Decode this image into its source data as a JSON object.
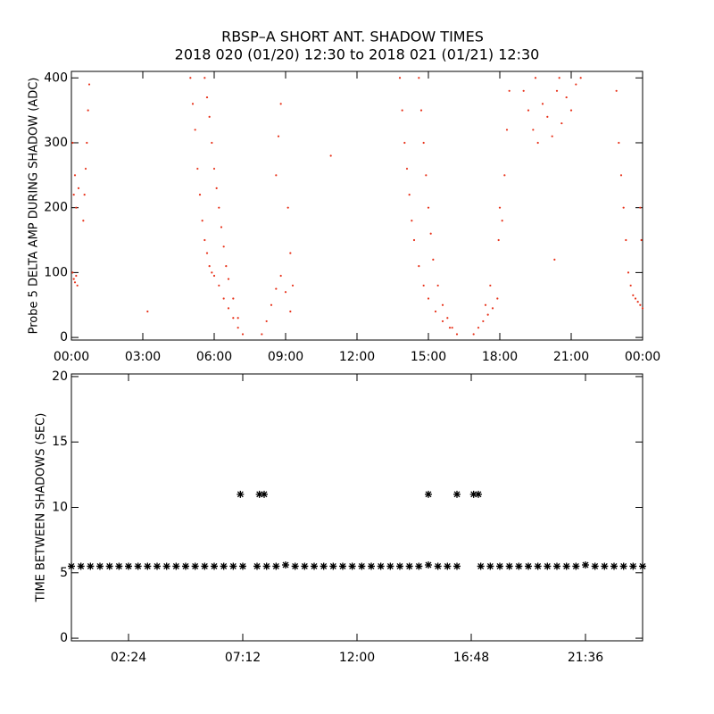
{
  "chart_data": [
    {
      "type": "scatter",
      "title": "RBSP–A SHORT ANT. SHADOW TIMES",
      "subtitle": "2018 020 (01/20) 12:30 to 2018 021 (01/21) 12:30",
      "ylabel": "Probe 5 DELTA AMP DURING SHADOW (ADC)",
      "color": "#e8321a",
      "marker": "dot",
      "xlim": [
        0,
        24
      ],
      "ylim": [
        -4,
        410
      ],
      "xticks": [
        {
          "value": 0,
          "label": "00:00"
        },
        {
          "value": 3,
          "label": "03:00"
        },
        {
          "value": 6,
          "label": "06:00"
        },
        {
          "value": 9,
          "label": "09:00"
        },
        {
          "value": 12,
          "label": "12:00"
        },
        {
          "value": 15,
          "label": "15:00"
        },
        {
          "value": 18,
          "label": "18:00"
        },
        {
          "value": 21,
          "label": "21:00"
        },
        {
          "value": 24,
          "label": "00:00"
        }
      ],
      "yticks": [
        0,
        100,
        200,
        300,
        400
      ],
      "x": [
        0.05,
        0.1,
        0.15,
        0.2,
        0.25,
        0.1,
        0.15,
        0.2,
        0.05,
        0.3,
        0.5,
        0.55,
        0.6,
        0.65,
        0.7,
        0.75,
        5.0,
        5.1,
        5.2,
        5.3,
        5.4,
        5.5,
        5.6,
        5.7,
        5.8,
        5.9,
        6.0,
        6.2,
        6.4,
        6.6,
        6.8,
        7.0,
        7.2,
        5.6,
        5.7,
        5.8,
        5.9,
        6.0,
        6.1,
        6.2,
        6.3,
        6.4,
        6.5,
        6.6,
        6.8,
        7.0,
        8.0,
        8.2,
        8.4,
        8.6,
        8.8,
        9.0,
        9.2,
        8.6,
        8.7,
        8.8,
        9.1,
        9.2,
        9.3,
        10.9,
        3.2,
        13.8,
        13.9,
        14.0,
        14.1,
        14.2,
        14.3,
        14.4,
        14.6,
        14.8,
        15.0,
        15.3,
        15.6,
        15.9,
        16.2,
        14.6,
        14.7,
        14.8,
        14.9,
        15.0,
        15.1,
        15.2,
        15.4,
        15.6,
        15.8,
        16.0,
        16.9,
        17.1,
        17.3,
        17.5,
        17.7,
        17.9,
        17.95,
        18.0,
        18.1,
        17.6,
        17.4,
        18.2,
        18.3,
        18.4,
        19.0,
        19.2,
        19.4,
        19.6,
        19.8,
        20.0,
        20.2,
        20.4,
        20.6,
        20.8,
        21.0,
        21.2,
        21.4,
        19.5,
        20.5,
        20.3,
        22.9,
        23.0,
        23.1,
        23.2,
        23.3,
        23.4,
        23.5,
        23.6,
        23.7,
        23.8,
        23.9,
        24.0,
        23.9,
        23.95
      ],
      "y": [
        100,
        90,
        85,
        95,
        80,
        220,
        250,
        200,
        300,
        230,
        180,
        220,
        260,
        300,
        350,
        390,
        400,
        360,
        320,
        260,
        220,
        180,
        150,
        130,
        110,
        100,
        95,
        80,
        60,
        45,
        30,
        15,
        5,
        400,
        370,
        340,
        300,
        260,
        230,
        200,
        170,
        140,
        110,
        90,
        60,
        30,
        5,
        25,
        50,
        75,
        95,
        70,
        40,
        250,
        310,
        360,
        200,
        130,
        80,
        280,
        40,
        400,
        350,
        300,
        260,
        220,
        180,
        150,
        110,
        80,
        60,
        40,
        25,
        15,
        5,
        400,
        350,
        300,
        250,
        200,
        160,
        120,
        80,
        50,
        30,
        15,
        5,
        15,
        25,
        35,
        45,
        60,
        150,
        200,
        180,
        80,
        50,
        250,
        320,
        380,
        380,
        350,
        320,
        300,
        360,
        340,
        310,
        380,
        330,
        370,
        350,
        390,
        400,
        400,
        400,
        120,
        380,
        300,
        250,
        200,
        150,
        100,
        80,
        65,
        60,
        55,
        50,
        45,
        200,
        150
      ]
    },
    {
      "type": "scatter",
      "ylabel": "TIME BETWEEN SHADOWS (SEC)",
      "color": "#000000",
      "marker": "star",
      "xlim": [
        0,
        24
      ],
      "ylim": [
        -0.2,
        20.2
      ],
      "xticks": [
        {
          "value": 2.4,
          "label": "02:24"
        },
        {
          "value": 7.2,
          "label": "07:12"
        },
        {
          "value": 12,
          "label": "12:00"
        },
        {
          "value": 16.8,
          "label": "16:48"
        },
        {
          "value": 21.6,
          "label": "21:36"
        }
      ],
      "yticks": [
        0,
        5,
        10,
        15,
        20
      ],
      "x": [
        0.0,
        0.4,
        0.8,
        1.2,
        1.6,
        2.0,
        2.4,
        2.8,
        3.2,
        3.6,
        4.0,
        4.4,
        4.8,
        5.2,
        5.6,
        6.0,
        6.4,
        6.8,
        7.2,
        7.8,
        8.2,
        8.6,
        9.0,
        9.4,
        9.8,
        10.2,
        10.6,
        11.0,
        11.4,
        11.8,
        12.2,
        12.6,
        13.0,
        13.4,
        13.8,
        14.2,
        14.6,
        15.0,
        15.4,
        15.8,
        16.2,
        17.2,
        17.6,
        18.0,
        18.4,
        18.8,
        19.2,
        19.6,
        20.0,
        20.4,
        20.8,
        21.2,
        21.6,
        22.0,
        22.4,
        22.8,
        23.2,
        23.6,
        24.0,
        7.1,
        7.9,
        8.1,
        15.0,
        16.2,
        16.9,
        17.1
      ],
      "y": [
        5.5,
        5.5,
        5.5,
        5.5,
        5.5,
        5.5,
        5.5,
        5.5,
        5.5,
        5.5,
        5.5,
        5.5,
        5.5,
        5.5,
        5.5,
        5.5,
        5.5,
        5.5,
        5.5,
        5.5,
        5.5,
        5.5,
        5.6,
        5.5,
        5.5,
        5.5,
        5.5,
        5.5,
        5.5,
        5.5,
        5.5,
        5.5,
        5.5,
        5.5,
        5.5,
        5.5,
        5.5,
        5.6,
        5.5,
        5.5,
        5.5,
        5.5,
        5.5,
        5.5,
        5.5,
        5.5,
        5.5,
        5.5,
        5.5,
        5.5,
        5.5,
        5.5,
        5.6,
        5.5,
        5.5,
        5.5,
        5.5,
        5.5,
        5.5,
        11,
        11,
        11,
        11,
        11,
        11,
        11
      ]
    }
  ]
}
